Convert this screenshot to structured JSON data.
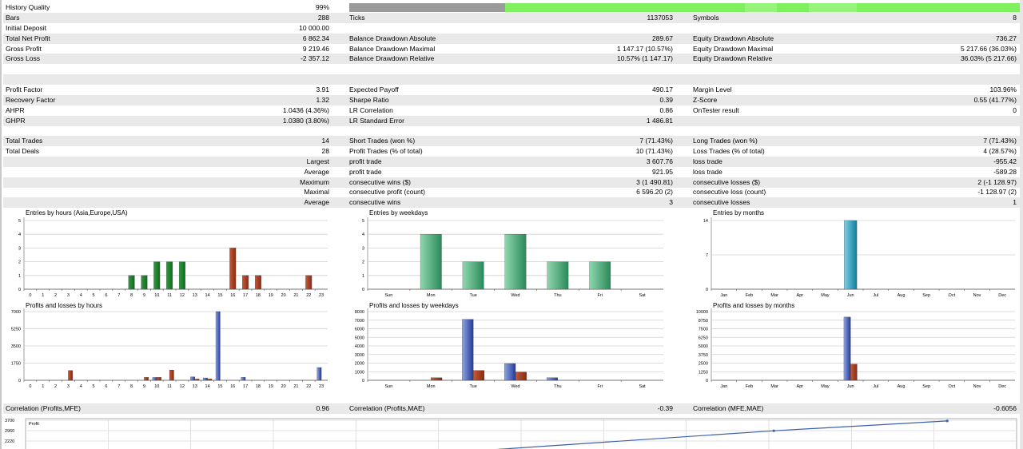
{
  "history": {
    "label": "History Quality",
    "value": "99%"
  },
  "rows": [
    {
      "shade": true,
      "c": [
        "Bars",
        "288",
        "Ticks",
        "1137053",
        "Symbols",
        "8"
      ]
    },
    {
      "shade": false,
      "c": [
        "Initial Deposit",
        "10 000.00",
        "",
        "",
        "",
        ""
      ]
    },
    {
      "shade": true,
      "c": [
        "Total Net Profit",
        "6 862.34",
        "Balance Drawdown Absolute",
        "289.67",
        "Equity Drawdown Absolute",
        "736.27"
      ]
    },
    {
      "shade": false,
      "c": [
        "Gross Profit",
        "9 219.46",
        "Balance Drawdown Maximal",
        "1 147.17 (10.57%)",
        "Equity Drawdown Maximal",
        "5 217.66 (36.03%)"
      ]
    },
    {
      "shade": true,
      "c": [
        "Gross Loss",
        "-2 357.12",
        "Balance Drawdown Relative",
        "10.57% (1 147.17)",
        "Equity Drawdown Relative",
        "36.03% (5 217.66)"
      ]
    },
    {
      "shade": false,
      "c": [
        "",
        "",
        "",
        "",
        "",
        ""
      ]
    },
    {
      "shade": true,
      "c": [
        "",
        "",
        "",
        "",
        "",
        ""
      ]
    },
    {
      "shade": false,
      "c": [
        "Profit Factor",
        "3.91",
        "Expected Payoff",
        "490.17",
        "Margin Level",
        "103.96%"
      ]
    },
    {
      "shade": true,
      "c": [
        "Recovery Factor",
        "1.32",
        "Sharpe Ratio",
        "0.39",
        "Z-Score",
        "0.55 (41.77%)"
      ]
    },
    {
      "shade": false,
      "c": [
        "AHPR",
        "1.0436 (4.36%)",
        "LR Correlation",
        "0.86",
        "OnTester result",
        "0"
      ]
    },
    {
      "shade": true,
      "c": [
        "GHPR",
        "1.0380 (3.80%)",
        "LR Standard Error",
        "1 486.81",
        "",
        ""
      ]
    },
    {
      "shade": false,
      "c": [
        "",
        "",
        "",
        "",
        "",
        ""
      ]
    },
    {
      "shade": true,
      "c": [
        "Total Trades",
        "14",
        "Short Trades (won %)",
        "7 (71.43%)",
        "Long Trades (won %)",
        "7 (71.43%)"
      ]
    },
    {
      "shade": false,
      "c": [
        "Total Deals",
        "28",
        "Profit Trades (% of total)",
        "10 (71.43%)",
        "Loss Trades (% of total)",
        "4 (28.57%)"
      ]
    },
    {
      "shade": true,
      "r": "Largest",
      "c": [
        "",
        "",
        "profit trade",
        "3 607.76",
        "loss trade",
        "-955.42"
      ]
    },
    {
      "shade": false,
      "r": "Average",
      "c": [
        "",
        "",
        "profit trade",
        "921.95",
        "loss trade",
        "-589.28"
      ]
    },
    {
      "shade": true,
      "r": "Maximum",
      "c": [
        "",
        "",
        "consecutive wins ($)",
        "3 (1 490.81)",
        "consecutive losses ($)",
        "2 (-1 128.97)"
      ]
    },
    {
      "shade": false,
      "r": "Maximal",
      "c": [
        "",
        "",
        "consecutive profit (count)",
        "6 596.20 (2)",
        "consecutive loss (count)",
        "-1 128.97 (2)"
      ]
    },
    {
      "shade": true,
      "r": "Average",
      "c": [
        "",
        "",
        "consecutive wins",
        "3",
        "consecutive losses",
        "1"
      ]
    }
  ],
  "correlations": [
    {
      "label": "Correlation (Profits,MFE)",
      "value": "0.96"
    },
    {
      "label": "Correlation (Profits,MAE)",
      "value": "-0.39"
    },
    {
      "label": "Correlation (MFE,MAE)",
      "value": "-0.6056"
    }
  ],
  "chart_data": [
    {
      "type": "bar",
      "title": "Entries by hours (Asia,Europe,USA)",
      "categories": [
        "0",
        "1",
        "2",
        "3",
        "4",
        "5",
        "6",
        "7",
        "8",
        "9",
        "10",
        "11",
        "12",
        "13",
        "14",
        "15",
        "16",
        "17",
        "18",
        "19",
        "20",
        "21",
        "22",
        "23"
      ],
      "ylim": [
        0,
        5
      ],
      "yticks": [
        "0",
        "1",
        "2",
        "3",
        "4",
        "5"
      ],
      "values": [
        0,
        0,
        0,
        0,
        0,
        0,
        0,
        0,
        1,
        1,
        2,
        2,
        2,
        0,
        0,
        0,
        3,
        1,
        1,
        0,
        0,
        0,
        1,
        0
      ],
      "colors": [
        "green",
        "green",
        "green",
        "green",
        "green",
        "green",
        "green",
        "green",
        "green",
        "green",
        "green",
        "green",
        "green",
        "green",
        "green",
        "green",
        "red",
        "red",
        "red",
        "red",
        "red",
        "red",
        "red",
        "red"
      ]
    },
    {
      "type": "bar",
      "title": "Entries by weekdays",
      "categories": [
        "Sun",
        "Mon",
        "Tue",
        "Wed",
        "Thu",
        "Fri",
        "Sat"
      ],
      "ylim": [
        0,
        5
      ],
      "yticks": [
        "0",
        "1",
        "2",
        "3",
        "4",
        "5"
      ],
      "values": [
        0,
        4,
        2,
        4,
        2,
        2,
        0
      ]
    },
    {
      "type": "bar",
      "title": "Entries by months",
      "categories": [
        "Jan",
        "Feb",
        "Mar",
        "Apr",
        "May",
        "Jun",
        "Jul",
        "Aug",
        "Sep",
        "Oct",
        "Nov",
        "Dec"
      ],
      "ylim": [
        0,
        14
      ],
      "yticks": [
        "0",
        "7",
        "14"
      ],
      "values": [
        0,
        0,
        0,
        0,
        0,
        14,
        0,
        0,
        0,
        0,
        0,
        0
      ]
    },
    {
      "type": "bar",
      "title": "Profits and losses by hours",
      "categories": [
        "0",
        "1",
        "2",
        "3",
        "4",
        "5",
        "6",
        "7",
        "8",
        "9",
        "10",
        "11",
        "12",
        "13",
        "14",
        "15",
        "16",
        "17",
        "18",
        "19",
        "20",
        "21",
        "22",
        "23"
      ],
      "ylim": [
        0,
        7000
      ],
      "yticks": [
        "0",
        "1750",
        "3500",
        "5250",
        "7000"
      ],
      "series": [
        {
          "color": "blue",
          "values": [
            0,
            0,
            0,
            0,
            0,
            0,
            0,
            0,
            0,
            0,
            290,
            0,
            0,
            350,
            240,
            7000,
            0,
            300,
            0,
            0,
            0,
            0,
            0,
            1300
          ]
        },
        {
          "color": "red",
          "values": [
            0,
            0,
            0,
            1000,
            0,
            0,
            0,
            0,
            0,
            300,
            300,
            1050,
            0,
            130,
            140,
            0,
            0,
            0,
            0,
            0,
            0,
            0,
            0,
            0
          ]
        }
      ]
    },
    {
      "type": "bar",
      "title": "Profits and losses by weekdays",
      "categories": [
        "Sun",
        "Mon",
        "Tue",
        "Wed",
        "Thu",
        "Fri",
        "Sat"
      ],
      "ylim": [
        0,
        8000
      ],
      "yticks": [
        "0",
        "1000",
        "2000",
        "3000",
        "4000",
        "5000",
        "6000",
        "7000",
        "8000"
      ],
      "series": [
        {
          "color": "blue",
          "values": [
            0,
            0,
            7100,
            1950,
            300,
            0,
            0
          ]
        },
        {
          "color": "red",
          "values": [
            0,
            300,
            1150,
            950,
            0,
            0,
            0
          ]
        }
      ]
    },
    {
      "type": "bar",
      "title": "Profits and losses by months",
      "categories": [
        "Jan",
        "Feb",
        "Mar",
        "Apr",
        "May",
        "Jun",
        "Jul",
        "Aug",
        "Sep",
        "Oct",
        "Nov",
        "Dec"
      ],
      "ylim": [
        0,
        10000
      ],
      "yticks": [
        "0",
        "1250",
        "2500",
        "3750",
        "5000",
        "6250",
        "7500",
        "8750",
        "10000"
      ],
      "series": [
        {
          "color": "blue",
          "values": [
            0,
            0,
            0,
            0,
            0,
            9200,
            0,
            0,
            0,
            0,
            0,
            0
          ]
        },
        {
          "color": "red",
          "values": [
            0,
            0,
            0,
            0,
            0,
            2350,
            0,
            0,
            0,
            0,
            0,
            0
          ]
        }
      ]
    },
    {
      "type": "line",
      "title": "Profit",
      "yticks": [
        "3700",
        "2960",
        "2220"
      ],
      "points": [
        [
          0.45,
          1500
        ],
        [
          0.755,
          2950
        ],
        [
          0.93,
          3650
        ]
      ]
    }
  ]
}
